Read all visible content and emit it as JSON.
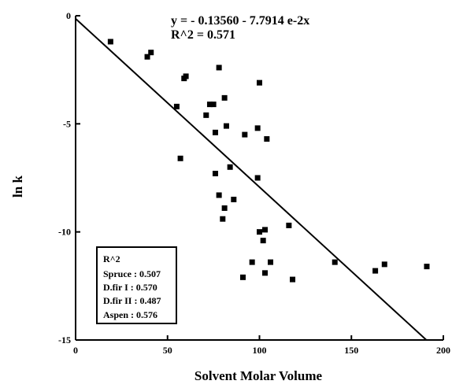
{
  "chart_data": {
    "type": "scatter",
    "xlabel": "Solvent Molar Volume",
    "ylabel": "ln k",
    "xlim": [
      0,
      200
    ],
    "ylim": [
      -15,
      0
    ],
    "x_ticks": [
      "0",
      "50",
      "100",
      "150",
      "200"
    ],
    "y_ticks": [
      "0",
      "-5",
      "-10",
      "-15"
    ],
    "grid": false,
    "annotations": [
      "y =  - 0.13560 - 7.7914 e-2x",
      "R^2 = 0.571"
    ],
    "fit_line": {
      "intercept": -0.1356,
      "slope": -0.077914
    },
    "legend": {
      "placement": "bottom-left",
      "title": "R^2",
      "entries": [
        "Spruce  :  0.507",
        "D.fir I  : 0.570",
        "D.fir II : 0.487",
        "Aspen  :  0.576"
      ]
    },
    "series": [
      {
        "points": [
          [
            19,
            -1.2
          ],
          [
            39,
            -1.9
          ],
          [
            41,
            -1.7
          ],
          [
            59,
            -2.9
          ],
          [
            60,
            -2.8
          ],
          [
            78,
            -2.4
          ],
          [
            55,
            -4.2
          ],
          [
            73,
            -4.1
          ],
          [
            75,
            -4.1
          ],
          [
            81,
            -3.8
          ],
          [
            71,
            -4.6
          ],
          [
            76,
            -5.4
          ],
          [
            82,
            -5.1
          ],
          [
            92,
            -5.5
          ],
          [
            99,
            -5.2
          ],
          [
            104,
            -5.7
          ],
          [
            100,
            -3.1
          ],
          [
            57,
            -6.6
          ],
          [
            76,
            -7.3
          ],
          [
            84,
            -7.0
          ],
          [
            99,
            -7.5
          ],
          [
            78,
            -8.3
          ],
          [
            81,
            -8.9
          ],
          [
            86,
            -8.5
          ],
          [
            80,
            -9.4
          ],
          [
            100,
            -10.0
          ],
          [
            103,
            -9.9
          ],
          [
            102,
            -10.4
          ],
          [
            116,
            -9.7
          ],
          [
            96,
            -11.4
          ],
          [
            106,
            -11.4
          ],
          [
            91,
            -12.1
          ],
          [
            103,
            -11.9
          ],
          [
            118,
            -12.2
          ],
          [
            141,
            -11.4
          ],
          [
            163,
            -11.8
          ],
          [
            168,
            -11.5
          ],
          [
            191,
            -11.6
          ]
        ]
      }
    ]
  }
}
